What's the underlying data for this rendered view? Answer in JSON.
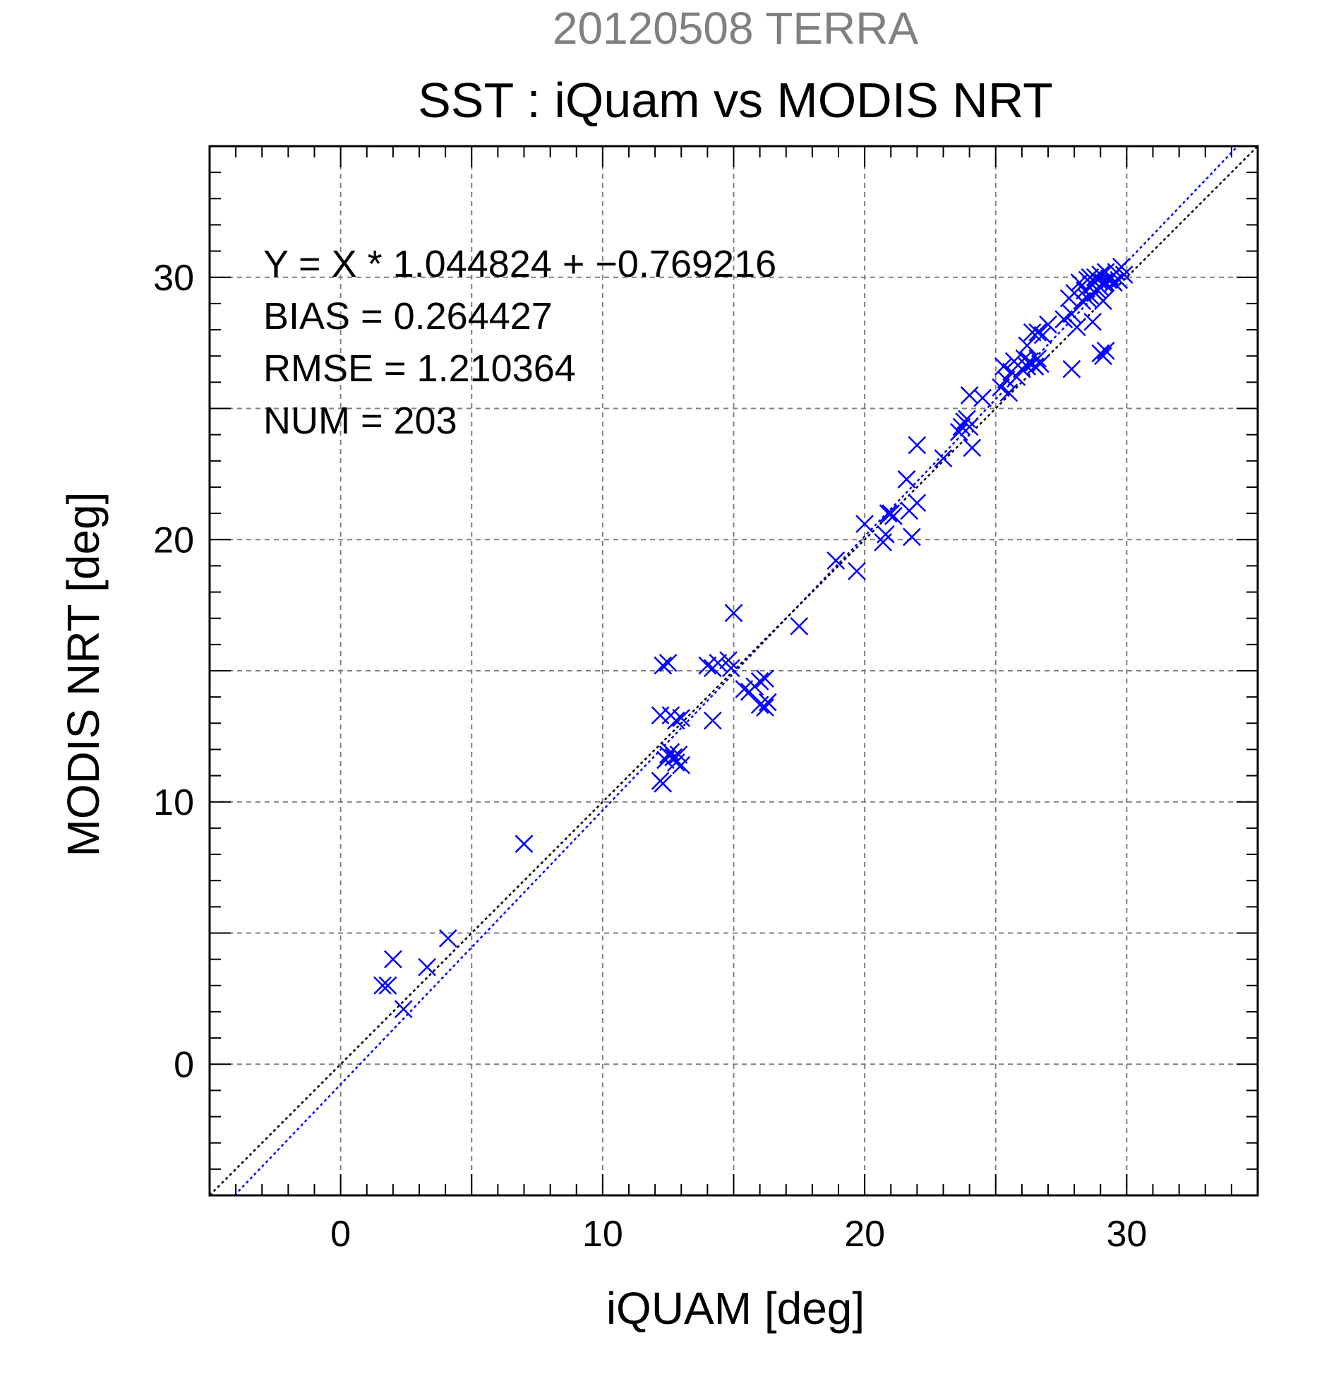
{
  "chart_data": {
    "type": "scatter",
    "title": "SST : iQuam vs MODIS NRT",
    "subtitle": "20120508 TERRA",
    "xlabel": "iQUAM [deg]",
    "ylabel": "MODIS NRT [deg]",
    "xlim": [
      -5,
      35
    ],
    "ylim": [
      -5,
      35
    ],
    "xticks": [
      0,
      10,
      20,
      30
    ],
    "yticks": [
      0,
      10,
      20,
      30
    ],
    "grid": true,
    "colors": {
      "points": "#0000ff",
      "fit_line": "#0000ff",
      "identity_line": "#000000",
      "subtitle": "#808080"
    },
    "annotations": [
      "Y = X * 1.044824 + −0.769216",
      "BIAS = 0.264427",
      "RMSE = 1.210364",
      "NUM = 203"
    ],
    "lines": [
      {
        "kind": "fit",
        "slope": 1.044824,
        "intercept": -0.769216
      },
      {
        "kind": "identity",
        "slope": 1,
        "intercept": 0
      }
    ],
    "series": [
      {
        "marker": "x",
        "points": [
          [
            1.6,
            3.0
          ],
          [
            1.8,
            3.0
          ],
          [
            2.0,
            4.0
          ],
          [
            2.4,
            2.1
          ],
          [
            3.3,
            3.7
          ],
          [
            4.1,
            4.8
          ],
          [
            7.0,
            8.4
          ],
          [
            12.3,
            15.2
          ],
          [
            12.5,
            15.3
          ],
          [
            12.2,
            13.3
          ],
          [
            12.6,
            13.3
          ],
          [
            12.8,
            13.1
          ],
          [
            13.0,
            13.2
          ],
          [
            12.2,
            10.8
          ],
          [
            12.3,
            10.7
          ],
          [
            12.4,
            11.6
          ],
          [
            12.5,
            11.8
          ],
          [
            12.6,
            11.9
          ],
          [
            12.7,
            11.7
          ],
          [
            12.8,
            11.5
          ],
          [
            12.9,
            11.8
          ],
          [
            13.0,
            11.4
          ],
          [
            14.0,
            15.2
          ],
          [
            14.2,
            15.1
          ],
          [
            14.4,
            15.3
          ],
          [
            14.2,
            13.1
          ],
          [
            14.8,
            15.4
          ],
          [
            14.9,
            15.1
          ],
          [
            15.0,
            17.2
          ],
          [
            15.4,
            14.3
          ],
          [
            15.6,
            14.2
          ],
          [
            15.8,
            14.4
          ],
          [
            16.0,
            14.6
          ],
          [
            16.2,
            14.7
          ],
          [
            16.0,
            13.7
          ],
          [
            16.2,
            13.6
          ],
          [
            16.3,
            13.8
          ],
          [
            17.5,
            16.7
          ],
          [
            18.9,
            19.2
          ],
          [
            19.7,
            18.8
          ],
          [
            20.0,
            20.6
          ],
          [
            20.7,
            19.9
          ],
          [
            20.8,
            20.2
          ],
          [
            20.9,
            21.0
          ],
          [
            21.0,
            21.0
          ],
          [
            21.1,
            20.9
          ],
          [
            21.6,
            22.3
          ],
          [
            21.7,
            21.1
          ],
          [
            21.8,
            20.1
          ],
          [
            22.0,
            21.4
          ],
          [
            22.0,
            23.6
          ],
          [
            23.0,
            23.1
          ],
          [
            23.6,
            24.1
          ],
          [
            23.7,
            24.3
          ],
          [
            23.8,
            24.5
          ],
          [
            23.9,
            24.6
          ],
          [
            24.0,
            24.3
          ],
          [
            24.0,
            25.5
          ],
          [
            24.1,
            23.5
          ],
          [
            24.5,
            25.4
          ],
          [
            25.2,
            25.8
          ],
          [
            25.3,
            26.6
          ],
          [
            25.4,
            26.1
          ],
          [
            25.5,
            25.6
          ],
          [
            25.6,
            26.4
          ],
          [
            25.7,
            26.8
          ],
          [
            25.8,
            26.2
          ],
          [
            26.0,
            26.5
          ],
          [
            26.1,
            26.9
          ],
          [
            26.2,
            26.6
          ],
          [
            26.3,
            26.8
          ],
          [
            26.4,
            26.7
          ],
          [
            26.5,
            26.6
          ],
          [
            26.6,
            26.9
          ],
          [
            26.7,
            26.7
          ],
          [
            26.2,
            27.4
          ],
          [
            26.4,
            27.9
          ],
          [
            26.6,
            27.9
          ],
          [
            26.8,
            27.8
          ],
          [
            27.0,
            28.2
          ],
          [
            27.6,
            28.4
          ],
          [
            27.8,
            29.2
          ],
          [
            27.9,
            28.6
          ],
          [
            27.9,
            26.5
          ],
          [
            28.0,
            29.4
          ],
          [
            28.1,
            28.1
          ],
          [
            28.2,
            29.8
          ],
          [
            28.3,
            29.1
          ],
          [
            28.4,
            29.5
          ],
          [
            28.5,
            29.2
          ],
          [
            28.5,
            29.9
          ],
          [
            28.6,
            30.0
          ],
          [
            28.6,
            29.3
          ],
          [
            28.7,
            29.7
          ],
          [
            28.7,
            28.3
          ],
          [
            28.8,
            29.4
          ],
          [
            28.8,
            30.0
          ],
          [
            28.9,
            29.9
          ],
          [
            28.9,
            29.5
          ],
          [
            29.0,
            30.1
          ],
          [
            29.0,
            29.6
          ],
          [
            29.1,
            29.8
          ],
          [
            29.1,
            29.1
          ],
          [
            29.2,
            29.8
          ],
          [
            29.2,
            30.2
          ],
          [
            29.3,
            29.9
          ],
          [
            29.4,
            30.0
          ],
          [
            29.5,
            29.8
          ],
          [
            29.6,
            30.2
          ],
          [
            29.7,
            29.9
          ],
          [
            29.8,
            30.4
          ],
          [
            29.9,
            30.1
          ],
          [
            29.0,
            27.1
          ],
          [
            29.1,
            27.0
          ],
          [
            29.2,
            27.2
          ]
        ]
      }
    ]
  }
}
